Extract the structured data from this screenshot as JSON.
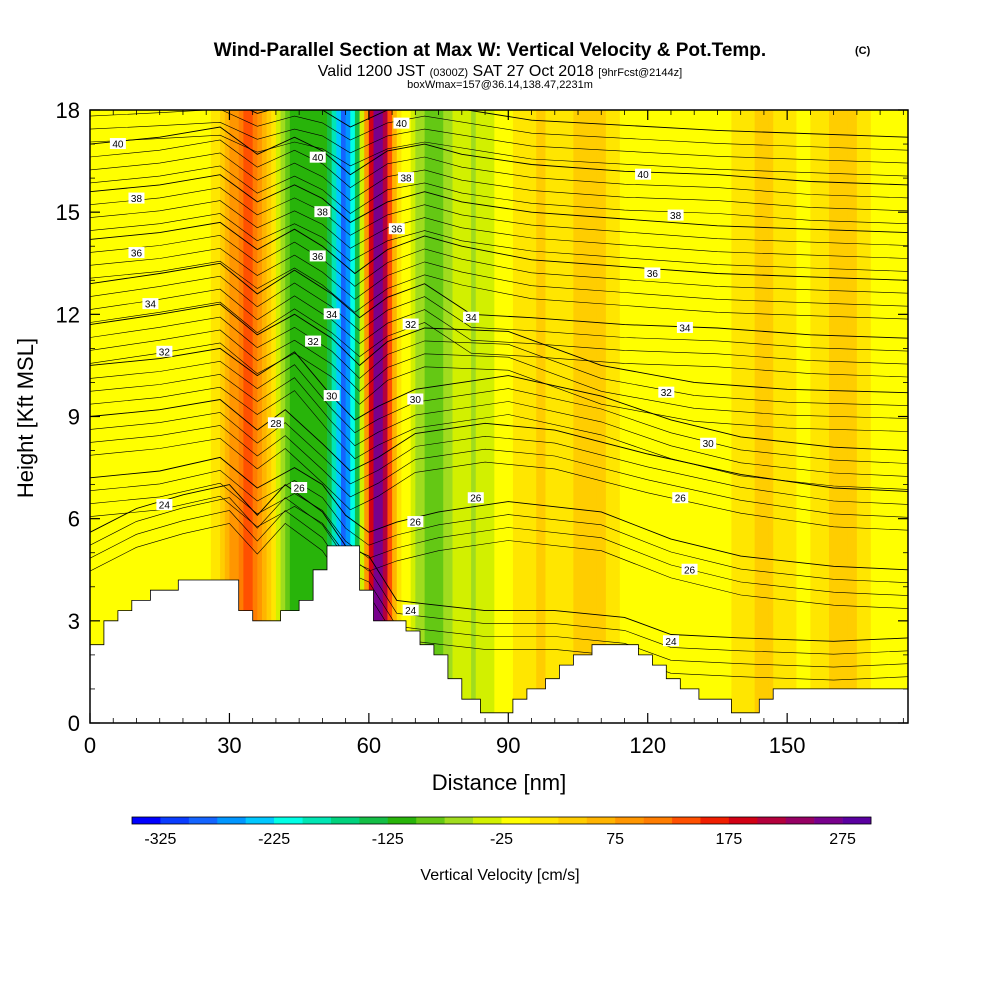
{
  "chart_data": {
    "type": "heatmap",
    "title": "Wind-Parallel Section at Max W: Vertical Velocity & Pot.Temp.",
    "copyright": "(C)",
    "subtitle_parts": {
      "a": "Valid 1200 JST",
      "b": "(0300Z)",
      "c": "SAT 27 Oct 2018",
      "d": "[9hrFcst@2144z]"
    },
    "subtitle2": "boxWmax=157@36.14,138.47,2231m",
    "xlabel": "Distance [nm]",
    "ylabel": "Height [Kft MSL]",
    "xlim": [
      0,
      176
    ],
    "ylim": [
      0,
      18
    ],
    "x_ticks": [
      0,
      30,
      60,
      90,
      120,
      150
    ],
    "y_ticks": [
      0,
      3,
      6,
      9,
      12,
      15,
      18
    ],
    "colorbar": {
      "label": "Vertical Velocity [cm/s]",
      "range": [
        -350,
        300
      ],
      "tick_values": [
        -325,
        -225,
        -125,
        -25,
        75,
        175,
        275
      ],
      "tick_labels": [
        "-325",
        "-225",
        "-125",
        "-25",
        "75",
        "175",
        "275"
      ],
      "colors": [
        "#0000ff",
        "#0a3cff",
        "#1464ff",
        "#0096ff",
        "#00c8ff",
        "#00ffe6",
        "#00e6b4",
        "#00d27d",
        "#14be46",
        "#28b40a",
        "#64c814",
        "#a0dc1e",
        "#d2f000",
        "#ffff00",
        "#ffe600",
        "#ffcd00",
        "#ffb400",
        "#ff9600",
        "#ff7d00",
        "#ff5000",
        "#f01e00",
        "#d20014",
        "#b4003c",
        "#960064",
        "#78008c",
        "#5a00a0"
      ]
    },
    "velocity_features": [
      {
        "x": 34,
        "width": 5,
        "value": 140
      },
      {
        "x": 44,
        "width": 4,
        "value": -110
      },
      {
        "x": 55,
        "width": 3.5,
        "value": -270
      },
      {
        "x": 62,
        "width": 3,
        "value": 290
      },
      {
        "x": 49,
        "width": 3,
        "value": -60
      },
      {
        "x": 74,
        "width": 4,
        "value": -90
      },
      {
        "x": 83,
        "width": 4,
        "value": -40
      },
      {
        "x": 97,
        "width": 6,
        "value": 35
      },
      {
        "x": 108,
        "width": 5,
        "value": 50
      },
      {
        "x": 145,
        "width": 6,
        "value": 40
      },
      {
        "x": 162,
        "width": 5,
        "value": 45
      }
    ],
    "terrain": [
      [
        0,
        2.3
      ],
      [
        3,
        2.3
      ],
      [
        3,
        3.0
      ],
      [
        6,
        3.0
      ],
      [
        6,
        3.3
      ],
      [
        9,
        3.3
      ],
      [
        9,
        3.6
      ],
      [
        13,
        3.6
      ],
      [
        13,
        3.9
      ],
      [
        19,
        3.9
      ],
      [
        19,
        4.2
      ],
      [
        32,
        4.2
      ],
      [
        32,
        3.3
      ],
      [
        35,
        3.3
      ],
      [
        35,
        3.0
      ],
      [
        41,
        3.0
      ],
      [
        41,
        3.3
      ],
      [
        45,
        3.3
      ],
      [
        45,
        3.6
      ],
      [
        48,
        3.6
      ],
      [
        48,
        4.5
      ],
      [
        51,
        4.5
      ],
      [
        51,
        5.2
      ],
      [
        58,
        5.2
      ],
      [
        58,
        3.9
      ],
      [
        61,
        3.9
      ],
      [
        61,
        3.0
      ],
      [
        68,
        3.0
      ],
      [
        68,
        2.7
      ],
      [
        71,
        2.7
      ],
      [
        71,
        2.3
      ],
      [
        74,
        2.3
      ],
      [
        74,
        2.0
      ],
      [
        77,
        2.0
      ],
      [
        77,
        1.3
      ],
      [
        80,
        1.3
      ],
      [
        80,
        0.7
      ],
      [
        84,
        0.7
      ],
      [
        84,
        0.3
      ],
      [
        91,
        0.3
      ],
      [
        91,
        0.7
      ],
      [
        94,
        0.7
      ],
      [
        94,
        1.0
      ],
      [
        98,
        1.0
      ],
      [
        98,
        1.3
      ],
      [
        101,
        1.3
      ],
      [
        101,
        1.7
      ],
      [
        104,
        1.7
      ],
      [
        104,
        2.0
      ],
      [
        108,
        2.0
      ],
      [
        108,
        2.3
      ],
      [
        118,
        2.3
      ],
      [
        118,
        2.0
      ],
      [
        121,
        2.0
      ],
      [
        121,
        1.7
      ],
      [
        124,
        1.7
      ],
      [
        124,
        1.3
      ],
      [
        127,
        1.3
      ],
      [
        127,
        1.0
      ],
      [
        131,
        1.0
      ],
      [
        131,
        0.7
      ],
      [
        138,
        0.7
      ],
      [
        138,
        0.3
      ],
      [
        144,
        0.3
      ],
      [
        144,
        0.7
      ],
      [
        147,
        0.7
      ],
      [
        147,
        1.0
      ],
      [
        176,
        1.0
      ]
    ],
    "contours": [
      {
        "value": 24,
        "label": "24",
        "base": 4.8,
        "pts": [
          [
            0,
            5.6
          ],
          [
            10,
            6.3
          ],
          [
            20,
            6.7
          ],
          [
            30,
            7.0
          ],
          [
            36,
            6.1
          ],
          [
            42,
            7.0
          ],
          [
            50,
            6.2
          ],
          [
            55,
            5.2
          ],
          [
            60,
            4.9
          ],
          [
            66,
            3.6
          ],
          [
            72,
            3.5
          ],
          [
            85,
            3.3
          ],
          [
            100,
            3.3
          ],
          [
            115,
            3.1
          ],
          [
            125,
            2.6
          ],
          [
            140,
            2.5
          ],
          [
            160,
            2.4
          ],
          [
            176,
            2.5
          ]
        ],
        "labels": [
          [
            16,
            6.4,
            "24"
          ],
          [
            69,
            3.3,
            "24"
          ],
          [
            125,
            2.4,
            "24"
          ]
        ]
      },
      {
        "value": 26,
        "label": "26",
        "base": 6.4,
        "pts": [
          [
            0,
            7.2
          ],
          [
            15,
            7.4
          ],
          [
            28,
            7.8
          ],
          [
            36,
            6.9
          ],
          [
            44,
            7.5
          ],
          [
            50,
            7.0
          ],
          [
            55,
            6.1
          ],
          [
            60,
            5.6
          ],
          [
            66,
            5.9
          ],
          [
            75,
            6.2
          ],
          [
            90,
            6.5
          ],
          [
            110,
            6.2
          ],
          [
            125,
            5.4
          ],
          [
            140,
            4.9
          ],
          [
            160,
            4.6
          ],
          [
            176,
            4.5
          ]
        ],
        "labels": [
          [
            45,
            6.9,
            "26"
          ],
          [
            70,
            5.9,
            "26"
          ],
          [
            83,
            6.6,
            "26"
          ],
          [
            127,
            6.6,
            "26"
          ],
          [
            129,
            4.5,
            "26"
          ]
        ]
      },
      {
        "value": 28,
        "label": "28",
        "base": 8.1,
        "pts": [
          [
            0,
            9.0
          ],
          [
            15,
            9.2
          ],
          [
            28,
            9.5
          ],
          [
            36,
            8.6
          ],
          [
            42,
            9.2
          ],
          [
            50,
            8.2
          ],
          [
            56,
            7.4
          ],
          [
            62,
            7.8
          ],
          [
            70,
            8.5
          ],
          [
            85,
            8.8
          ],
          [
            100,
            8.6
          ],
          [
            120,
            7.9
          ],
          [
            140,
            7.3
          ],
          [
            160,
            6.9
          ],
          [
            176,
            6.8
          ]
        ],
        "labels": [
          [
            40,
            8.8,
            "28"
          ]
        ]
      },
      {
        "value": 30,
        "label": "30",
        "base": 9.6,
        "pts": [
          [
            0,
            10.5
          ],
          [
            15,
            10.7
          ],
          [
            28,
            11.0
          ],
          [
            36,
            10.2
          ],
          [
            44,
            10.9
          ],
          [
            52,
            9.6
          ],
          [
            57,
            8.9
          ],
          [
            62,
            9.3
          ],
          [
            70,
            9.8
          ],
          [
            90,
            10.2
          ],
          [
            110,
            9.6
          ],
          [
            125,
            8.9
          ],
          [
            140,
            8.4
          ],
          [
            160,
            8.1
          ],
          [
            176,
            8.0
          ]
        ],
        "labels": [
          [
            52,
            9.6,
            "30"
          ],
          [
            70,
            9.5,
            "30"
          ],
          [
            133,
            8.2,
            "30"
          ]
        ]
      },
      {
        "value": 32,
        "label": "32",
        "base": 11.2,
        "pts": [
          [
            0,
            11.7
          ],
          [
            15,
            12.0
          ],
          [
            28,
            12.3
          ],
          [
            36,
            11.4
          ],
          [
            44,
            12.0
          ],
          [
            52,
            11.3
          ],
          [
            58,
            10.5
          ],
          [
            64,
            11.2
          ],
          [
            72,
            11.6
          ],
          [
            90,
            11.5
          ],
          [
            110,
            10.5
          ],
          [
            130,
            10.0
          ],
          [
            150,
            9.8
          ],
          [
            176,
            9.7
          ]
        ],
        "labels": [
          [
            16,
            10.9,
            "32"
          ],
          [
            48,
            11.2,
            "32"
          ],
          [
            69,
            11.7,
            "32"
          ],
          [
            124,
            9.7,
            "32"
          ]
        ]
      },
      {
        "value": 34,
        "label": "34",
        "base": 12.6,
        "pts": [
          [
            0,
            12.9
          ],
          [
            15,
            13.2
          ],
          [
            28,
            13.5
          ],
          [
            36,
            12.6
          ],
          [
            44,
            13.3
          ],
          [
            52,
            12.6
          ],
          [
            58,
            11.9
          ],
          [
            64,
            12.5
          ],
          [
            72,
            12.9
          ],
          [
            82,
            12.0
          ],
          [
            95,
            11.9
          ],
          [
            115,
            11.7
          ],
          [
            135,
            11.6
          ],
          [
            155,
            11.4
          ],
          [
            176,
            11.3
          ]
        ],
        "labels": [
          [
            13,
            12.3,
            "34"
          ],
          [
            52,
            12.0,
            "34"
          ],
          [
            82,
            11.9,
            "34"
          ],
          [
            128,
            11.6,
            "34"
          ]
        ]
      },
      {
        "value": 36,
        "label": "36",
        "base": 14.0,
        "pts": [
          [
            0,
            14.2
          ],
          [
            15,
            14.4
          ],
          [
            28,
            14.7
          ],
          [
            36,
            13.9
          ],
          [
            44,
            14.5
          ],
          [
            50,
            14.0
          ],
          [
            57,
            13.2
          ],
          [
            64,
            13.9
          ],
          [
            72,
            14.3
          ],
          [
            80,
            14.0
          ],
          [
            95,
            13.6
          ],
          [
            115,
            13.4
          ],
          [
            135,
            13.2
          ],
          [
            155,
            13.1
          ],
          [
            176,
            13.0
          ]
        ],
        "labels": [
          [
            10,
            13.8,
            "36"
          ],
          [
            49,
            13.7,
            "36"
          ],
          [
            66,
            14.5,
            "36"
          ],
          [
            121,
            13.2,
            "36"
          ]
        ]
      },
      {
        "value": 38,
        "label": "38",
        "base": 15.4,
        "pts": [
          [
            0,
            15.6
          ],
          [
            15,
            15.8
          ],
          [
            28,
            16.1
          ],
          [
            36,
            15.3
          ],
          [
            44,
            15.8
          ],
          [
            50,
            15.4
          ],
          [
            56,
            14.7
          ],
          [
            64,
            15.3
          ],
          [
            72,
            15.6
          ],
          [
            80,
            15.3
          ],
          [
            95,
            15.0
          ],
          [
            115,
            14.8
          ],
          [
            135,
            14.6
          ],
          [
            155,
            14.5
          ],
          [
            176,
            14.4
          ]
        ],
        "labels": [
          [
            10,
            15.4,
            "38"
          ],
          [
            50,
            15.0,
            "38"
          ],
          [
            68,
            16.0,
            "38"
          ],
          [
            126,
            14.9,
            "38"
          ]
        ]
      },
      {
        "value": 40,
        "label": "40",
        "base": 16.8,
        "pts": [
          [
            0,
            17.0
          ],
          [
            15,
            17.2
          ],
          [
            28,
            17.5
          ],
          [
            36,
            16.7
          ],
          [
            44,
            17.2
          ],
          [
            50,
            16.8
          ],
          [
            56,
            16.1
          ],
          [
            64,
            16.8
          ],
          [
            72,
            17.0
          ],
          [
            80,
            16.7
          ],
          [
            95,
            16.4
          ],
          [
            115,
            16.2
          ],
          [
            135,
            16.1
          ],
          [
            155,
            15.9
          ],
          [
            176,
            15.8
          ]
        ],
        "labels": [
          [
            6,
            17.0,
            "40"
          ],
          [
            49,
            16.6,
            "40"
          ],
          [
            67,
            17.6,
            "40"
          ],
          [
            119,
            16.1,
            "40"
          ]
        ]
      },
      {
        "value": 42,
        "label": "",
        "base": 18.0,
        "pts": [
          [
            0,
            18.2
          ],
          [
            15,
            18.3
          ],
          [
            28,
            18.4
          ],
          [
            36,
            17.9
          ],
          [
            44,
            18.2
          ],
          [
            50,
            18.0
          ],
          [
            56,
            17.5
          ],
          [
            64,
            18.0
          ],
          [
            72,
            18.2
          ],
          [
            95,
            17.7
          ],
          [
            135,
            17.4
          ],
          [
            176,
            17.2
          ]
        ],
        "labels": []
      }
    ]
  }
}
